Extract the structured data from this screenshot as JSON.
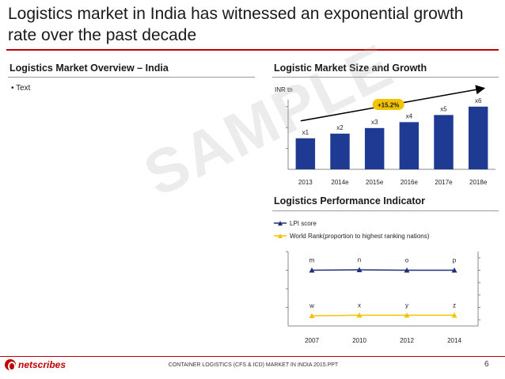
{
  "page": {
    "title": "Logistics market in India has witnessed an exponential growth rate over the past decade",
    "left_section_title": "Logistics Market Overview – India",
    "bullet_text": "Text",
    "watermark": "SAMPLE",
    "footer_text": "CONTAINER LOGISTICS (CFS & ICD) MARKET IN INDIA 2015.PPT",
    "page_number": "6",
    "logo_text": "netscribes",
    "colors": {
      "accent": "#c00000",
      "bar": "#1f3a93",
      "lpi": "#1f2f7a",
      "rank": "#f2c300"
    }
  },
  "chart_data": [
    {
      "type": "bar",
      "title": "Logistic Market Size and Growth",
      "ylabel": "INR tn",
      "categories": [
        "2013",
        "2014e",
        "2015e",
        "2016e",
        "2017e",
        "2018e"
      ],
      "values": [
        1,
        1.15,
        1.33,
        1.52,
        1.75,
        2.02
      ],
      "data_labels": [
        "x1",
        "x2",
        "x3",
        "x4",
        "x5",
        "x6"
      ],
      "ylim": [
        0,
        2.6
      ],
      "annotation": "+15.2%"
    },
    {
      "type": "line",
      "title": "Logistics Performance Indicator",
      "categories": [
        "2007",
        "2010",
        "2012",
        "2014"
      ],
      "series": [
        {
          "name": "LPI score",
          "values": [
            3.0,
            3.02,
            3.0,
            3.0
          ],
          "labels": [
            "m",
            "n",
            "o",
            "p"
          ]
        },
        {
          "name": "World Rank(proportion to highest ranking nations)",
          "values": [
            0.55,
            0.58,
            0.58,
            0.58
          ],
          "labels": [
            "w",
            "x",
            "y",
            "z"
          ]
        }
      ],
      "ylim": [
        0,
        4
      ]
    }
  ]
}
